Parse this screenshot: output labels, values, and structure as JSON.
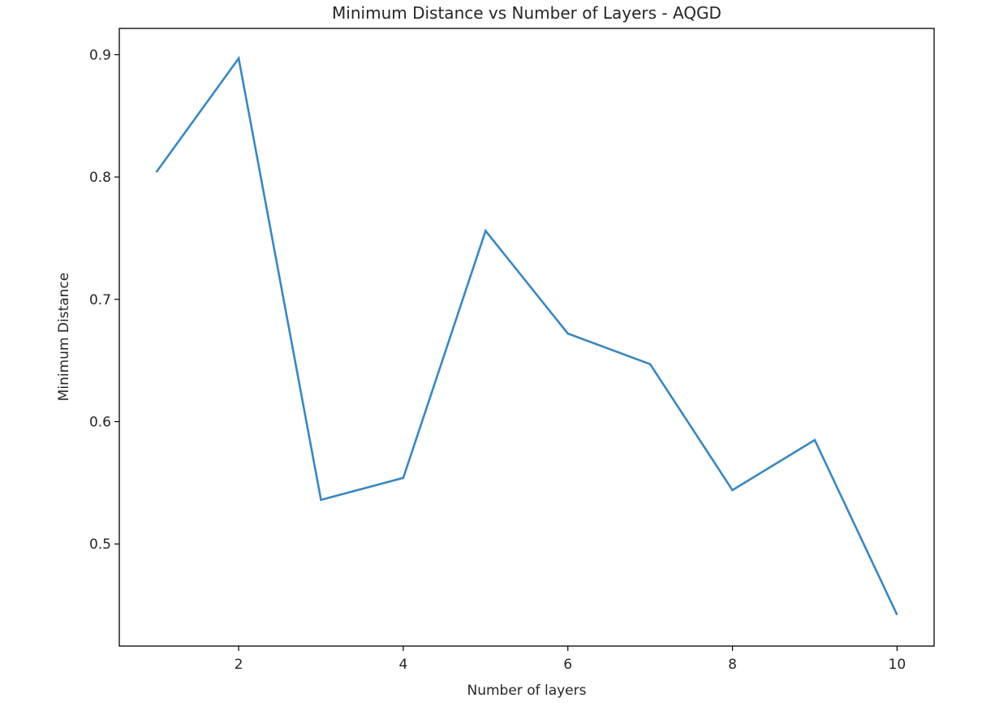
{
  "chart_data": {
    "type": "line",
    "title": "Minimum Distance vs Number of Layers - AQGD",
    "xlabel": "Number of layers",
    "ylabel": "Minimum Distance",
    "x": [
      1,
      2,
      3,
      4,
      5,
      6,
      7,
      8,
      9,
      10
    ],
    "series": [
      {
        "values": [
          0.804,
          0.897,
          0.536,
          0.554,
          0.756,
          0.672,
          0.647,
          0.544,
          0.585,
          0.442
        ],
        "color": "#3a87c0"
      }
    ],
    "xlim": [
      0.55,
      10.45
    ],
    "ylim": [
      0.4165,
      0.9215
    ],
    "xticks": [
      2,
      4,
      6,
      8,
      10
    ],
    "xtick_labels": [
      "2",
      "4",
      "6",
      "8",
      "10"
    ],
    "yticks": [
      0.5,
      0.6,
      0.7,
      0.8,
      0.9
    ],
    "ytick_labels": [
      "0.5",
      "0.6",
      "0.7",
      "0.8",
      "0.9"
    ],
    "grid": false,
    "legend": "none"
  }
}
